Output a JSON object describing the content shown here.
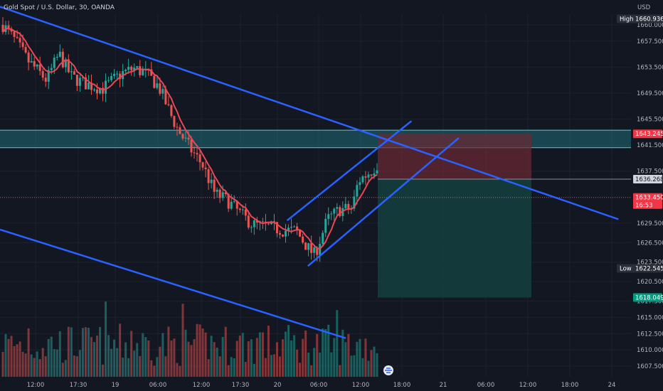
{
  "header": {
    "title": "Gold Spot / U.S. Dollar, 30, OANDA",
    "currency": "USD"
  },
  "colors": {
    "background": "#131722",
    "up": "#26a69a",
    "down": "#ef5350",
    "trendline": "#2962ff",
    "zone": "#1f6b78",
    "stop_zone": "#6b2a35",
    "target_zone": "#153f3f",
    "ma_line": "#e84855"
  },
  "chart_data": {
    "type": "candlestick",
    "y_axis_ticks": [
      "1660.000",
      "1657.500",
      "1653.500",
      "1649.500",
      "1645.500",
      "1641.500",
      "1637.500",
      "1629.500",
      "1626.500",
      "1623.500",
      "1620.500",
      "1617.500",
      "1615.000",
      "1612.500",
      "1610.000",
      "1607.500"
    ],
    "x_axis_ticks": [
      "12:00",
      "17:30",
      "19",
      "06:00",
      "12:00",
      "17:30",
      "20",
      "06:00",
      "12:00",
      "18:00",
      "21",
      "06:00",
      "12:00",
      "18:00",
      "24"
    ],
    "ylim": [
      1605.5,
      1662.5
    ],
    "candles_open_close_high_low": [],
    "price_tags": [
      {
        "label": "High",
        "value": "1660.936",
        "style": "dark"
      },
      {
        "label": "",
        "value": "1643.245",
        "style": "red"
      },
      {
        "label": "",
        "value": "1636.268",
        "style": "grey"
      },
      {
        "label": "",
        "value": "1633.450",
        "sub": "16:53",
        "style": "red"
      },
      {
        "label": "Low",
        "value": "1622.545",
        "style": "dark"
      },
      {
        "label": "",
        "value": "1618.049",
        "style": "green"
      }
    ],
    "annotations": {
      "resistance_zone": [
        1641.1,
        1643.8
      ],
      "short_position": {
        "entry": 1636.268,
        "stop": 1643.245,
        "target": 1618.049
      },
      "current_price": 1633.45,
      "descending_channel_upper": [
        [
          -2,
          1662.8
        ],
        [
          0.93,
          1630.1
        ]
      ],
      "descending_channel_lower": [
        [
          -2,
          1628.5
        ],
        [
          0.52,
          1611.8
        ]
      ],
      "ascending_channel_upper": [
        [
          0.43,
          1629.9
        ],
        [
          0.62,
          1645.2
        ]
      ],
      "ascending_channel_lower": [
        [
          0.46,
          1622.9
        ],
        [
          0.69,
          1642.5
        ]
      ]
    }
  }
}
